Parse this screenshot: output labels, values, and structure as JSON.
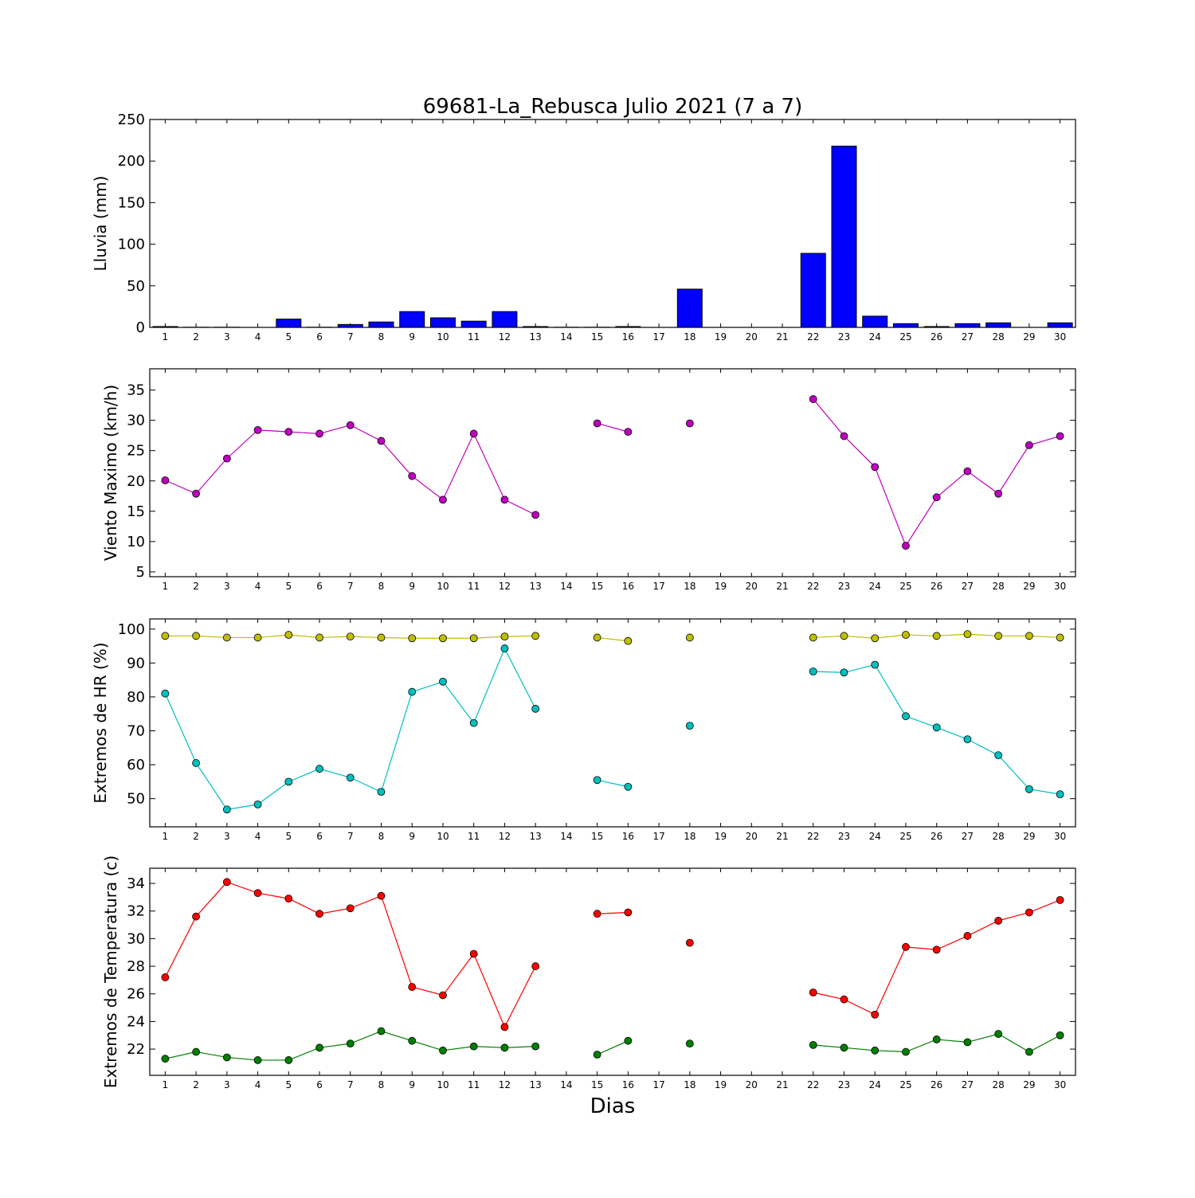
{
  "chart_data": [
    {
      "type": "bar",
      "title": "69681-La_Rebusca Julio 2021  (7 a 7)",
      "xlabel": "",
      "ylabel": "Lluvia (mm)",
      "categories": [
        "1",
        "2",
        "3",
        "4",
        "5",
        "6",
        "7",
        "8",
        "9",
        "10",
        "11",
        "12",
        "13",
        "14",
        "15",
        "16",
        "17",
        "18",
        "19",
        "20",
        "21",
        "22",
        "23",
        "24",
        "25",
        "26",
        "27",
        "28",
        "29",
        "30"
      ],
      "series": [
        {
          "values": [
            1,
            0.2,
            0.2,
            0,
            10,
            0.2,
            3.5,
            6.5,
            19,
            11.5,
            7.5,
            19,
            1,
            0.2,
            0.2,
            1,
            0,
            46,
            0,
            0,
            0,
            89,
            218,
            13.5,
            4.5,
            1,
            4.5,
            5.5,
            0,
            5.5
          ],
          "color": "#0000ff"
        }
      ],
      "ylim": [
        0,
        250
      ],
      "yticks": [
        0,
        50,
        100,
        150,
        200,
        250
      ],
      "grid": false
    },
    {
      "type": "line",
      "title": "",
      "xlabel": "",
      "ylabel": "Viento Maximo (km/h)",
      "categories": [
        "1",
        "2",
        "3",
        "4",
        "5",
        "6",
        "7",
        "8",
        "9",
        "10",
        "11",
        "12",
        "13",
        "14",
        "15",
        "16",
        "17",
        "18",
        "19",
        "20",
        "21",
        "22",
        "23",
        "24",
        "25",
        "26",
        "27",
        "28",
        "29",
        "30"
      ],
      "series": [
        {
          "values": [
            20.1,
            17.9,
            23.7,
            28.4,
            28.1,
            27.8,
            29.2,
            26.6,
            20.8,
            16.9,
            27.8,
            16.9,
            14.4,
            null,
            29.5,
            28.1,
            null,
            29.5,
            null,
            null,
            null,
            33.5,
            27.4,
            22.3,
            9.3,
            17.3,
            21.6,
            17.9,
            25.9,
            27.4
          ],
          "color": "#bf00bf",
          "marker_fill": "#bf00bf"
        }
      ],
      "ylim": [
        4.2,
        38.5
      ],
      "yticks": [
        5,
        10,
        15,
        20,
        25,
        30,
        35
      ],
      "grid": false
    },
    {
      "type": "line",
      "title": "",
      "xlabel": "",
      "ylabel": "Extremos de HR (%)",
      "categories": [
        "1",
        "2",
        "3",
        "4",
        "5",
        "6",
        "7",
        "8",
        "9",
        "10",
        "11",
        "12",
        "13",
        "14",
        "15",
        "16",
        "17",
        "18",
        "19",
        "20",
        "21",
        "22",
        "23",
        "24",
        "25",
        "26",
        "27",
        "28",
        "29",
        "30"
      ],
      "series": [
        {
          "values": [
            98,
            98,
            97.5,
            97.5,
            98.3,
            97.5,
            97.8,
            97.5,
            97.3,
            97.3,
            97.3,
            97.8,
            98,
            null,
            97.5,
            96.5,
            null,
            97.5,
            null,
            null,
            null,
            97.5,
            98,
            97.3,
            98.3,
            98,
            98.5,
            98,
            98,
            97.5
          ],
          "color": "#bfbf00",
          "marker_fill": "#bfbf00"
        },
        {
          "values": [
            81,
            60.5,
            46.8,
            48.3,
            55,
            58.8,
            56.2,
            52,
            81.5,
            84.5,
            72.3,
            94.3,
            76.5,
            null,
            55.5,
            53.5,
            null,
            71.5,
            null,
            null,
            null,
            87.5,
            87.2,
            89.5,
            74.3,
            71,
            67.5,
            62.8,
            52.8,
            51.3
          ],
          "color": "#00bfbf",
          "marker_fill": "#00bfbf"
        }
      ],
      "ylim": [
        41.7,
        103
      ],
      "yticks": [
        50,
        60,
        70,
        80,
        90,
        100
      ],
      "grid": false
    },
    {
      "type": "line",
      "title": "",
      "xlabel": "Dias",
      "ylabel": "Extremos de Temperatura (c)",
      "categories": [
        "1",
        "2",
        "3",
        "4",
        "5",
        "6",
        "7",
        "8",
        "9",
        "10",
        "11",
        "12",
        "13",
        "14",
        "15",
        "16",
        "17",
        "18",
        "19",
        "20",
        "21",
        "22",
        "23",
        "24",
        "25",
        "26",
        "27",
        "28",
        "29",
        "30"
      ],
      "series": [
        {
          "values": [
            27.2,
            31.6,
            34.1,
            33.3,
            32.9,
            31.8,
            32.2,
            33.1,
            26.5,
            25.9,
            28.9,
            23.6,
            28,
            null,
            31.8,
            31.9,
            null,
            29.7,
            null,
            null,
            null,
            26.1,
            25.6,
            24.5,
            29.4,
            29.2,
            30.2,
            31.3,
            31.9,
            32.8
          ],
          "color": "#ff0000",
          "marker_fill": "#ff0000"
        },
        {
          "values": [
            21.3,
            21.8,
            21.4,
            21.2,
            21.2,
            22.1,
            22.4,
            23.3,
            22.6,
            21.9,
            22.2,
            22.1,
            22.2,
            null,
            21.6,
            22.6,
            null,
            22.4,
            null,
            null,
            null,
            22.3,
            22.1,
            21.9,
            21.8,
            22.7,
            22.5,
            23.1,
            21.8,
            23
          ],
          "color": "#007f00",
          "marker_fill": "#007f00"
        }
      ],
      "ylim": [
        20.1,
        35.1
      ],
      "yticks": [
        22,
        24,
        26,
        28,
        30,
        32,
        34
      ],
      "grid": false
    }
  ]
}
